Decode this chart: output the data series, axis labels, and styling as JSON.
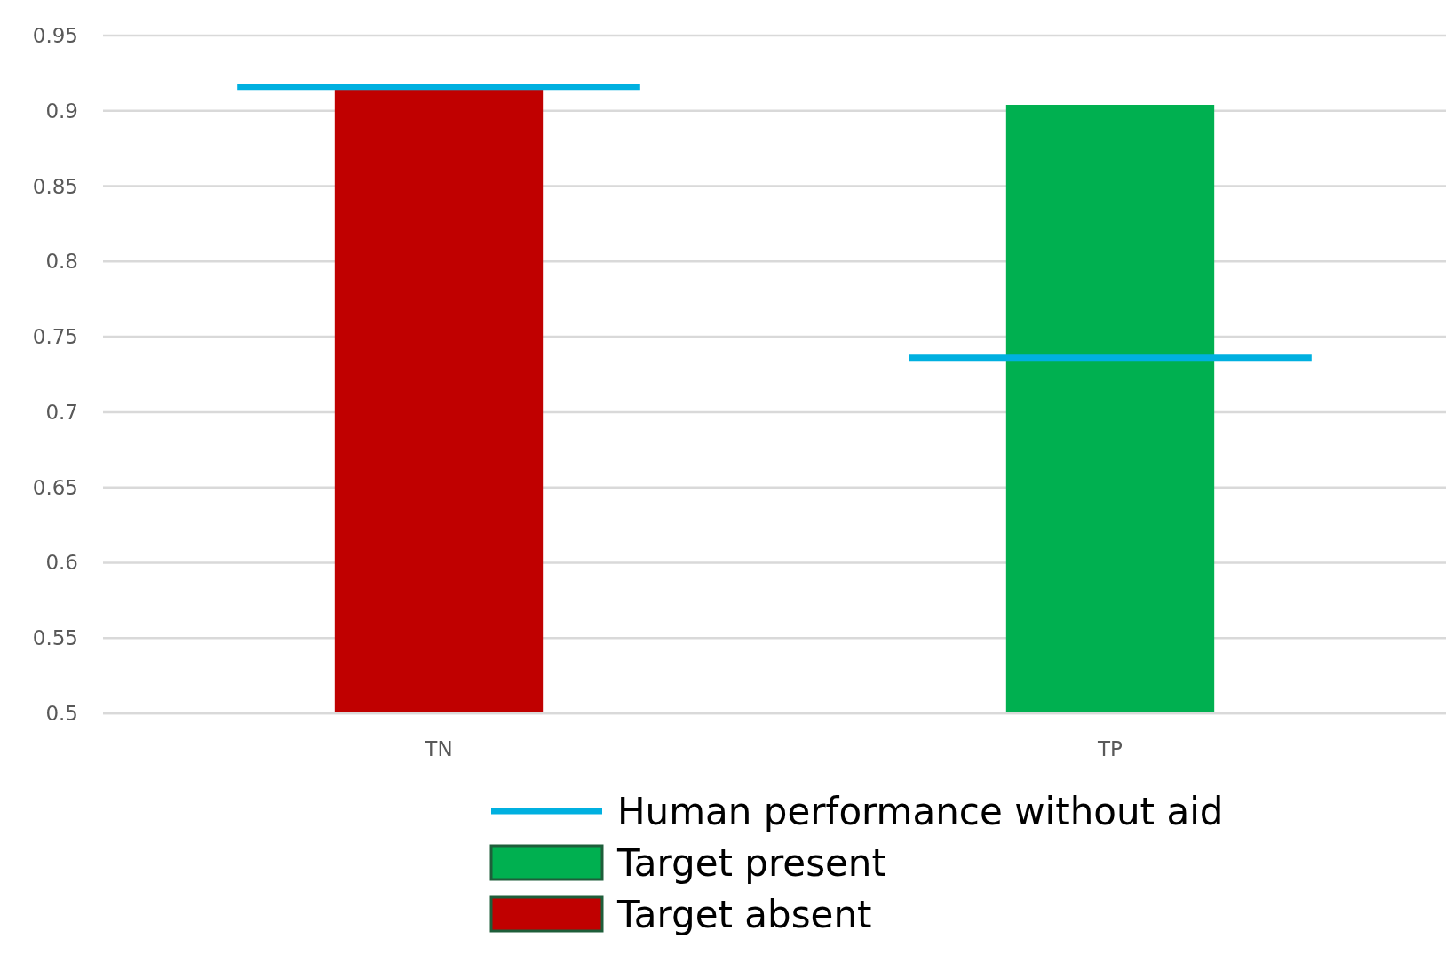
{
  "chart_data": {
    "type": "bar",
    "categories": [
      "TN",
      "TP"
    ],
    "series": [
      {
        "name": "Target present",
        "color": "#00b050",
        "values": [
          null,
          0.904
        ]
      },
      {
        "name": "Target absent",
        "color": "#c00000",
        "values": [
          0.914,
          null
        ]
      }
    ],
    "ref_lines": [
      {
        "axis": "y",
        "value": 0.916,
        "label": "Human performance without aid",
        "color": "#00b0e0"
      },
      {
        "axis": "y",
        "value": 0.736,
        "color": "#00b0e0"
      }
    ],
    "ylim": [
      0.5,
      0.95
    ],
    "yticks": [
      0.5,
      0.55,
      0.6,
      0.65,
      0.7,
      0.75,
      0.8,
      0.85,
      0.9,
      0.95
    ],
    "grid": "y",
    "legend": "bottom"
  }
}
